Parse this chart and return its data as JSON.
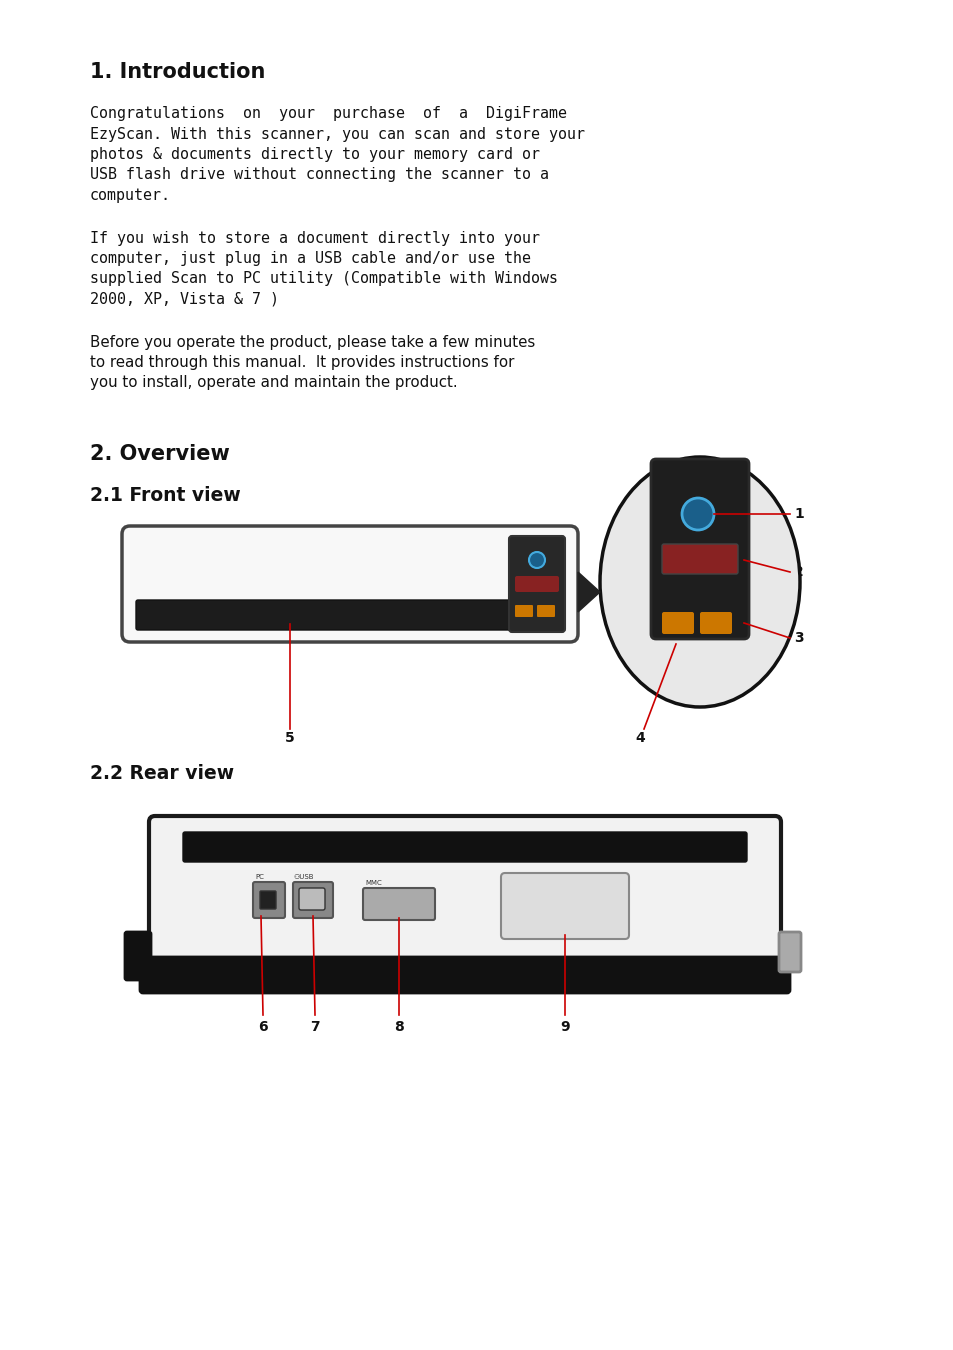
{
  "title": "1. Introduction",
  "section2_title": "2. Overview",
  "section21_title": "2.1 Front view",
  "section22_title": "2.2 Rear view",
  "bg_color": "#ffffff",
  "text_color": "#111111",
  "red_color": "#cc0000",
  "body_fontsize": 10.8,
  "heading1_fontsize": 15,
  "heading2_fontsize": 13.5,
  "para1_lines": [
    "Congratulations  on  your  purchase  of  a  DigiFrame",
    "EzyScan. With this scanner, you can scan and store your",
    "photos & documents directly to your memory card or",
    "USB flash drive without connecting the scanner to a",
    "computer."
  ],
  "para2_lines": [
    "If you wish to store a document directly into your",
    "computer, just plug in a USB cable and/or use the",
    "supplied Scan to PC utility (Compatible with Windows",
    "2000, XP, Vista & 7 )"
  ],
  "para3_lines": [
    "Before you operate the product, please take a few minutes",
    "to read through this manual.  It provides instructions for",
    "you to install, operate and maintain the product."
  ]
}
